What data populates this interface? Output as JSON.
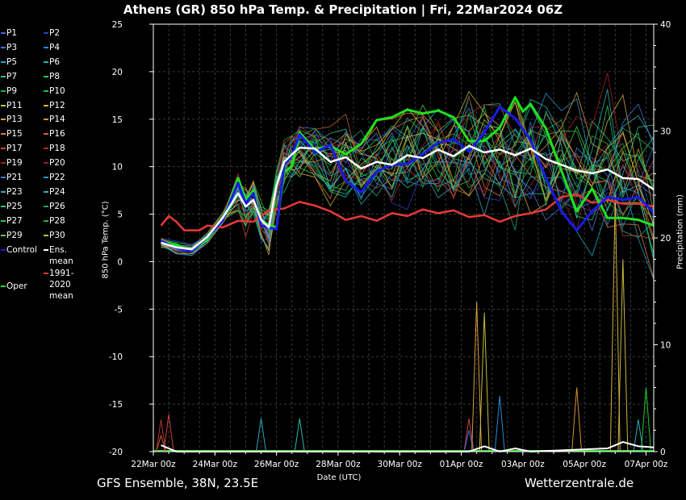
{
  "header": {
    "title": "Athens  (GR)  850 hPa Temp. & Precipitation | Fri, 22Mar2024 06Z"
  },
  "footer": {
    "left": "GFS Ensemble, 38N, 23.5E",
    "right": "Wetterzentrale.de"
  },
  "legend": {
    "items": [
      {
        "label": "P1",
        "color": "#4a5fd8"
      },
      {
        "label": "P2",
        "color": "#2a3fc0"
      },
      {
        "label": "P3",
        "color": "#3a6ee0"
      },
      {
        "label": "P4",
        "color": "#2a8ad8"
      },
      {
        "label": "P5",
        "color": "#22a8c8"
      },
      {
        "label": "P6",
        "color": "#20b8a0"
      },
      {
        "label": "P7",
        "color": "#20c890"
      },
      {
        "label": "P8",
        "color": "#22c870"
      },
      {
        "label": "P9",
        "color": "#18b040"
      },
      {
        "label": "P10",
        "color": "#22c830"
      },
      {
        "label": "P11",
        "color": "#c8c040"
      },
      {
        "label": "P12",
        "color": "#d8b040"
      },
      {
        "label": "P13",
        "color": "#d8a040"
      },
      {
        "label": "P14",
        "color": "#d89030"
      },
      {
        "label": "P15",
        "color": "#d88040"
      },
      {
        "label": "P16",
        "color": "#c86030"
      },
      {
        "label": "P17",
        "color": "#c84040"
      },
      {
        "label": "P18",
        "color": "#b83030"
      },
      {
        "label": "P19",
        "color": "#a82020"
      },
      {
        "label": "P20",
        "color": "#982020"
      },
      {
        "label": "P21",
        "color": "#4a78d8"
      },
      {
        "label": "P22",
        "color": "#2a98d0"
      },
      {
        "label": "P23",
        "color": "#30a8c0"
      },
      {
        "label": "P24",
        "color": "#28b8b0"
      },
      {
        "label": "P25",
        "color": "#28c890"
      },
      {
        "label": "P26",
        "color": "#20a870"
      },
      {
        "label": "P27",
        "color": "#30c860"
      },
      {
        "label": "P28",
        "color": "#28b040"
      },
      {
        "label": "P29",
        "color": "#60c840"
      },
      {
        "label": "P30",
        "color": "#c8b840"
      },
      {
        "label": "Control",
        "color": "#1a1ae8"
      },
      {
        "label": "Ens. mean",
        "color": "#ffffff"
      },
      {
        "label": "1991-2020\nmean",
        "color": "#e83838"
      },
      {
        "label": "Oper",
        "color": "#20e020"
      }
    ]
  },
  "chart_data": {
    "type": "line",
    "title": "Athens  (GR)  850 hPa Temp. & Precipitation | Fri, 22Mar2024 06Z",
    "xlabel": "Date (UTC)",
    "ylabel": "850 hPa Temp. (°C)",
    "y2label": "Precipitation (mm)",
    "x_ticks": [
      "22Mar 00z",
      "24Mar 00z",
      "26Mar 00z",
      "28Mar 00z",
      "30Mar 00z",
      "01Apr 00z",
      "03Apr 00z",
      "05Apr 00z",
      "07Apr 00z"
    ],
    "xlim_hours": [
      0,
      390
    ],
    "ylim": [
      -20,
      25
    ],
    "y_ticks": [
      -20,
      -15,
      -10,
      -5,
      0,
      5,
      10,
      15,
      20,
      25
    ],
    "y2lim": [
      0,
      40
    ],
    "y2_ticks": [
      0,
      10,
      20,
      30,
      40
    ],
    "grid": true,
    "legend_position": "left",
    "series": [
      {
        "name": "Ens. mean",
        "color": "#ffffff",
        "width": 2.5,
        "points": [
          [
            6,
            2
          ],
          [
            18,
            1.5
          ],
          [
            30,
            1.3
          ],
          [
            42,
            2.6
          ],
          [
            54,
            4.6
          ],
          [
            66,
            7.2
          ],
          [
            72,
            5.8
          ],
          [
            78,
            6.5
          ],
          [
            84,
            4.4
          ],
          [
            90,
            3.6
          ],
          [
            96,
            8
          ],
          [
            102,
            10.5
          ],
          [
            108,
            11.3
          ],
          [
            114,
            12
          ],
          [
            126,
            11.9
          ],
          [
            138,
            10.5
          ],
          [
            150,
            11
          ],
          [
            162,
            9.8
          ],
          [
            174,
            10.5
          ],
          [
            186,
            10.2
          ],
          [
            198,
            11.2
          ],
          [
            210,
            10.9
          ],
          [
            222,
            11.8
          ],
          [
            234,
            11.1
          ],
          [
            246,
            12.2
          ],
          [
            258,
            11.5
          ],
          [
            270,
            11.8
          ],
          [
            282,
            11.2
          ],
          [
            294,
            11.9
          ],
          [
            306,
            10.8
          ],
          [
            318,
            10.2
          ],
          [
            330,
            9.6
          ],
          [
            342,
            9.3
          ],
          [
            354,
            9.7
          ],
          [
            366,
            8.8
          ],
          [
            378,
            8.7
          ],
          [
            390,
            7.6
          ]
        ]
      },
      {
        "name": "1991-2020 mean",
        "color": "#e83838",
        "width": 2.5,
        "points": [
          [
            6,
            3.8
          ],
          [
            12,
            4.8
          ],
          [
            18,
            4.2
          ],
          [
            24,
            3.3
          ],
          [
            36,
            3.3
          ],
          [
            42,
            3.8
          ],
          [
            54,
            3.6
          ],
          [
            66,
            4.3
          ],
          [
            78,
            4.2
          ],
          [
            90,
            5.4
          ],
          [
            102,
            5.6
          ],
          [
            114,
            6.3
          ],
          [
            126,
            5.9
          ],
          [
            138,
            5.3
          ],
          [
            150,
            4.4
          ],
          [
            162,
            4.8
          ],
          [
            174,
            4.3
          ],
          [
            186,
            5.1
          ],
          [
            198,
            4.8
          ],
          [
            210,
            5.5
          ],
          [
            222,
            5.1
          ],
          [
            234,
            5.4
          ],
          [
            246,
            4.7
          ],
          [
            258,
            4.9
          ],
          [
            270,
            4.2
          ],
          [
            282,
            4.8
          ],
          [
            294,
            5.1
          ],
          [
            306,
            5.5
          ],
          [
            318,
            6.8
          ],
          [
            330,
            7.1
          ],
          [
            342,
            6.2
          ],
          [
            354,
            6.5
          ],
          [
            366,
            6.1
          ],
          [
            378,
            6.1
          ],
          [
            390,
            5.8
          ]
        ]
      },
      {
        "name": "Oper",
        "color": "#20e020",
        "width": 3,
        "points": [
          [
            6,
            2.1
          ],
          [
            18,
            1.8
          ],
          [
            30,
            1.1
          ],
          [
            42,
            2.4
          ],
          [
            54,
            4.4
          ],
          [
            66,
            8.8
          ],
          [
            72,
            6.6
          ],
          [
            78,
            7.5
          ],
          [
            84,
            4.2
          ],
          [
            96,
            3.6
          ],
          [
            102,
            9.5
          ],
          [
            108,
            10
          ],
          [
            114,
            13.6
          ],
          [
            126,
            11.8
          ],
          [
            138,
            12.2
          ],
          [
            150,
            11.3
          ],
          [
            162,
            12.4
          ],
          [
            174,
            14.9
          ],
          [
            186,
            15.2
          ],
          [
            198,
            16
          ],
          [
            210,
            15.6
          ],
          [
            222,
            15.9
          ],
          [
            234,
            15.2
          ],
          [
            246,
            12.7
          ],
          [
            258,
            12.7
          ],
          [
            270,
            14.1
          ],
          [
            282,
            17.3
          ],
          [
            288,
            15.8
          ],
          [
            294,
            16.6
          ],
          [
            306,
            14
          ],
          [
            318,
            9.6
          ],
          [
            330,
            5.3
          ],
          [
            342,
            7.7
          ],
          [
            354,
            4.6
          ],
          [
            366,
            4.6
          ],
          [
            378,
            4.4
          ],
          [
            390,
            3.8
          ]
        ]
      },
      {
        "name": "Control",
        "color": "#1a1ae8",
        "width": 3,
        "points": [
          [
            6,
            2.2
          ],
          [
            18,
            1.4
          ],
          [
            30,
            1.1
          ],
          [
            42,
            2.6
          ],
          [
            54,
            4.3
          ],
          [
            66,
            8.3
          ],
          [
            72,
            6.1
          ],
          [
            78,
            7.2
          ],
          [
            84,
            3.8
          ],
          [
            96,
            3.4
          ],
          [
            102,
            10.2
          ],
          [
            108,
            11.2
          ],
          [
            114,
            13.4
          ],
          [
            126,
            11.5
          ],
          [
            138,
            12.3
          ],
          [
            150,
            8.5
          ],
          [
            162,
            7.3
          ],
          [
            174,
            9.5
          ],
          [
            186,
            10.2
          ],
          [
            198,
            10.3
          ],
          [
            210,
            11.3
          ],
          [
            222,
            12.5
          ],
          [
            234,
            12.9
          ],
          [
            246,
            11.6
          ],
          [
            258,
            13.6
          ],
          [
            270,
            16.3
          ],
          [
            282,
            15.1
          ],
          [
            294,
            12.8
          ],
          [
            306,
            8.8
          ],
          [
            318,
            5.3
          ],
          [
            330,
            3.3
          ],
          [
            342,
            5.3
          ],
          [
            354,
            6.8
          ],
          [
            366,
            6.5
          ],
          [
            378,
            6.8
          ],
          [
            390,
            5.2
          ]
        ]
      }
    ],
    "precipitation": {
      "axis": "y2",
      "baseline_color": "#20e020",
      "spikes": [
        {
          "hour": 6,
          "mm": 1.5,
          "color": "#c86030"
        },
        {
          "hour": 6,
          "mm": 3,
          "color": "#b83030"
        },
        {
          "hour": 12,
          "mm": 3.5,
          "color": "#c84040"
        },
        {
          "hour": 84,
          "mm": 3.1,
          "color": "#30a8c0"
        },
        {
          "hour": 114,
          "mm": 3.1,
          "color": "#28b8b0"
        },
        {
          "hour": 246,
          "mm": 3.1,
          "color": "#c84040"
        },
        {
          "hour": 246,
          "mm": 2,
          "color": "#4a5fd8"
        },
        {
          "hour": 252,
          "mm": 14,
          "color": "#d8a040"
        },
        {
          "hour": 258,
          "mm": 13,
          "color": "#c8b840"
        },
        {
          "hour": 270,
          "mm": 5.2,
          "color": "#2a8ad8"
        },
        {
          "hour": 330,
          "mm": 6,
          "color": "#d89030"
        },
        {
          "hour": 360,
          "mm": 24,
          "color": "#d8b040"
        },
        {
          "hour": 366,
          "mm": 18,
          "color": "#c8b840"
        },
        {
          "hour": 378,
          "mm": 3,
          "color": "#30a8c0"
        },
        {
          "hour": 384,
          "mm": 6,
          "color": "#22c830"
        }
      ]
    }
  }
}
